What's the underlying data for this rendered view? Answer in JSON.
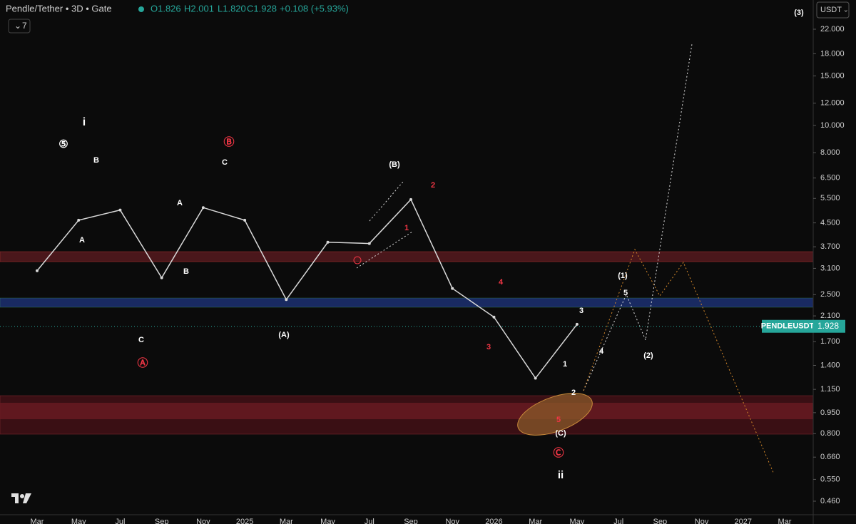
{
  "header": {
    "title": "Pendle/Tether • 3D • Gate",
    "open": "O1.826",
    "high": "H2.001",
    "low": "L1.820",
    "close": "C1.928",
    "change": "+0.108 (+5.93%)",
    "indicator_count": 7,
    "currency": "USDT"
  },
  "chart_data": {
    "type": "line",
    "log_scale": true,
    "categories": [
      "Mar",
      "May",
      "Jul",
      "Sep",
      "Nov",
      "2025",
      "Mar",
      "May",
      "Jul",
      "Sep",
      "Nov",
      "2026",
      "Mar",
      "May",
      "Jul",
      "Sep",
      "Nov",
      "2027",
      "Mar"
    ],
    "series": [
      {
        "name": "PENDLEUSDT",
        "color": "#d9d9d9",
        "values": [
          3.04,
          4.6,
          5.0,
          2.87,
          5.1,
          4.6,
          2.4,
          3.84,
          3.8,
          5.45,
          2.63,
          2.08,
          1.26,
          1.96,
          null,
          null,
          null,
          null,
          null
        ]
      }
    ],
    "last_price": 1.928,
    "ylim": [
      0.46,
      22
    ],
    "yticks": [
      {
        "value": 22,
        "label": "22.000"
      },
      {
        "value": 18,
        "label": "18.000"
      },
      {
        "value": 15,
        "label": "15.000"
      },
      {
        "value": 12,
        "label": "12.000"
      },
      {
        "value": 10,
        "label": "10.000"
      },
      {
        "value": 8,
        "label": "8.000"
      },
      {
        "value": 6.5,
        "label": "6.500"
      },
      {
        "value": 5.5,
        "label": "5.500"
      },
      {
        "value": 4.5,
        "label": "4.500"
      },
      {
        "value": 3.7,
        "label": "3.700"
      },
      {
        "value": 3.1,
        "label": "3.100"
      },
      {
        "value": 2.5,
        "label": "2.500"
      },
      {
        "value": 2.1,
        "label": "2.100"
      },
      {
        "value": 1.7,
        "label": "1.700"
      },
      {
        "value": 1.4,
        "label": "1.400"
      },
      {
        "value": 1.15,
        "label": "1.150"
      },
      {
        "value": 0.95,
        "label": "0.950"
      },
      {
        "value": 0.8,
        "label": "0.800"
      },
      {
        "value": 0.66,
        "label": "0.660"
      },
      {
        "value": 0.55,
        "label": "0.550"
      },
      {
        "value": 0.46,
        "label": "0.460"
      }
    ],
    "annotations": [
      "i",
      "⑤",
      "B",
      "A",
      "C",
      "Ⓐ",
      "A",
      "B",
      "C",
      "Ⓑ",
      "(A)",
      "(B)",
      "2",
      "1",
      "4",
      "3",
      "5",
      "(C)",
      "Ⓒ",
      "ii",
      "1",
      "2",
      "3",
      "4",
      "5",
      "(1)",
      "(2)",
      "(3)"
    ]
  }
}
